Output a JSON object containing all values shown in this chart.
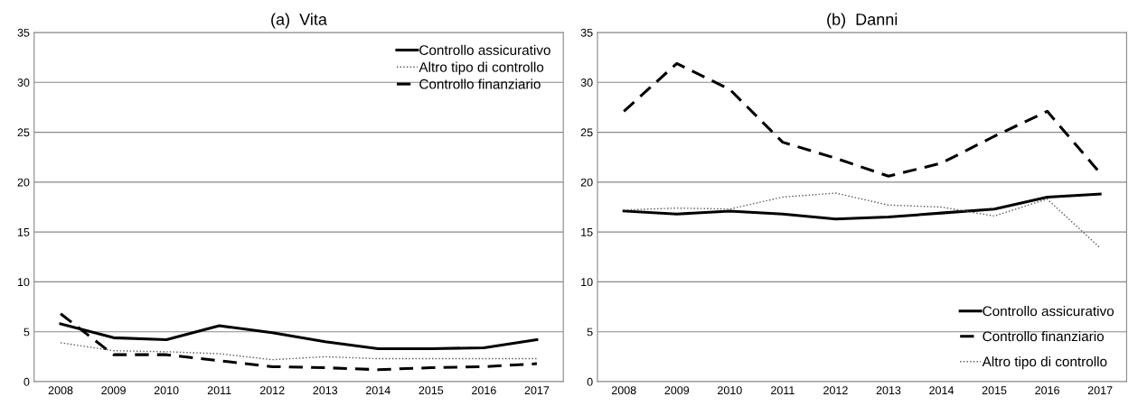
{
  "chart_data": [
    {
      "type": "line",
      "title": "(a)  Vita",
      "categories": [
        "2008",
        "2009",
        "2010",
        "2011",
        "2012",
        "2013",
        "2014",
        "2015",
        "2016",
        "2017"
      ],
      "ylim": [
        0,
        35
      ],
      "yticks": [
        0,
        5,
        10,
        15,
        20,
        25,
        30,
        35
      ],
      "grid": "y",
      "legend": "top right",
      "series": [
        {
          "name": "Controllo assicurativo",
          "color": "#000000",
          "line_style": "solid",
          "values": [
            5.8,
            4.4,
            4.2,
            5.6,
            4.9,
            4.0,
            3.3,
            3.3,
            3.4,
            4.2
          ]
        },
        {
          "name": "Altro tipo di controllo",
          "color": "#555555",
          "line_style": "dotted",
          "values": [
            3.9,
            3.1,
            3.0,
            2.8,
            2.2,
            2.5,
            2.3,
            2.3,
            2.3,
            2.3
          ]
        },
        {
          "name": "Controllo finanziario",
          "color": "#000000",
          "line_style": "dashed",
          "values": [
            6.8,
            2.7,
            2.7,
            2.1,
            1.5,
            1.4,
            1.2,
            1.4,
            1.5,
            1.8
          ]
        }
      ]
    },
    {
      "type": "line",
      "title": "(b)  Danni",
      "categories": [
        "2008",
        "2009",
        "2010",
        "2011",
        "2012",
        "2013",
        "2014",
        "2015",
        "2016",
        "2017"
      ],
      "ylim": [
        0,
        35
      ],
      "yticks": [
        0,
        5,
        10,
        15,
        20,
        25,
        30,
        35
      ],
      "grid": "y",
      "legend": "bottom right",
      "series": [
        {
          "name": "Controllo assicurativo",
          "color": "#000000",
          "line_style": "solid",
          "values": [
            17.1,
            16.8,
            17.1,
            16.8,
            16.3,
            16.5,
            16.9,
            17.3,
            18.5,
            18.8
          ]
        },
        {
          "name": "Controllo finanziario",
          "color": "#000000",
          "line_style": "dashed",
          "values": [
            27.1,
            31.9,
            29.3,
            24.0,
            22.4,
            20.6,
            21.9,
            24.6,
            27.1,
            20.9
          ]
        },
        {
          "name": "Altro tipo di controllo",
          "color": "#555555",
          "line_style": "dotted",
          "values": [
            17.2,
            17.4,
            17.3,
            18.5,
            18.9,
            17.7,
            17.5,
            16.6,
            18.3,
            13.4
          ]
        }
      ]
    }
  ]
}
